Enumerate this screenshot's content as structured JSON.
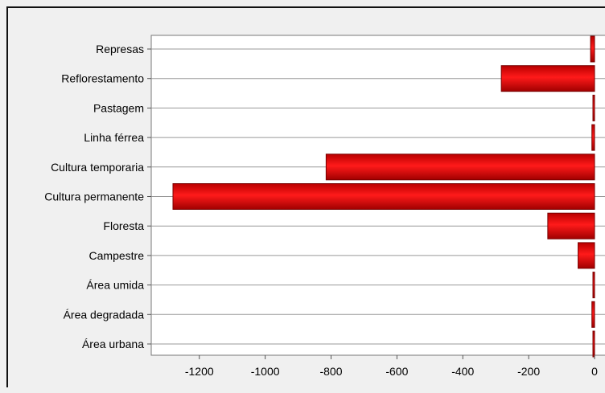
{
  "chart_data": {
    "type": "bar",
    "orientation": "horizontal",
    "title": "",
    "xlabel": "",
    "ylabel": "",
    "categories": [
      "Represas",
      "Reflorestamento",
      "Pastagem",
      "Linha férrea",
      "Cultura temporaria",
      "Cultura permanente",
      "Floresta",
      "Campestre",
      "Área umida",
      "Área degradada",
      "Área urbana"
    ],
    "values": [
      -12,
      -283,
      -2,
      -8,
      -815,
      -1280,
      -142,
      -50,
      -2,
      -8,
      -2
    ],
    "xlim": [
      -1300,
      0
    ],
    "xticks": [
      -1200,
      -1000,
      -800,
      -600,
      -400,
      -200,
      0
    ],
    "tick_labels": [
      "-1200",
      "-1000",
      "-800",
      "-600",
      "-400",
      "-200",
      "0"
    ],
    "grid": "horizontal lines at each category",
    "legend": "none",
    "colors": {
      "bar": "#e00000",
      "bar_edge": "#7a0000",
      "plot_bg": "#ffffff",
      "outer_bg": "#f0f0f0",
      "grid": "#999999"
    }
  }
}
